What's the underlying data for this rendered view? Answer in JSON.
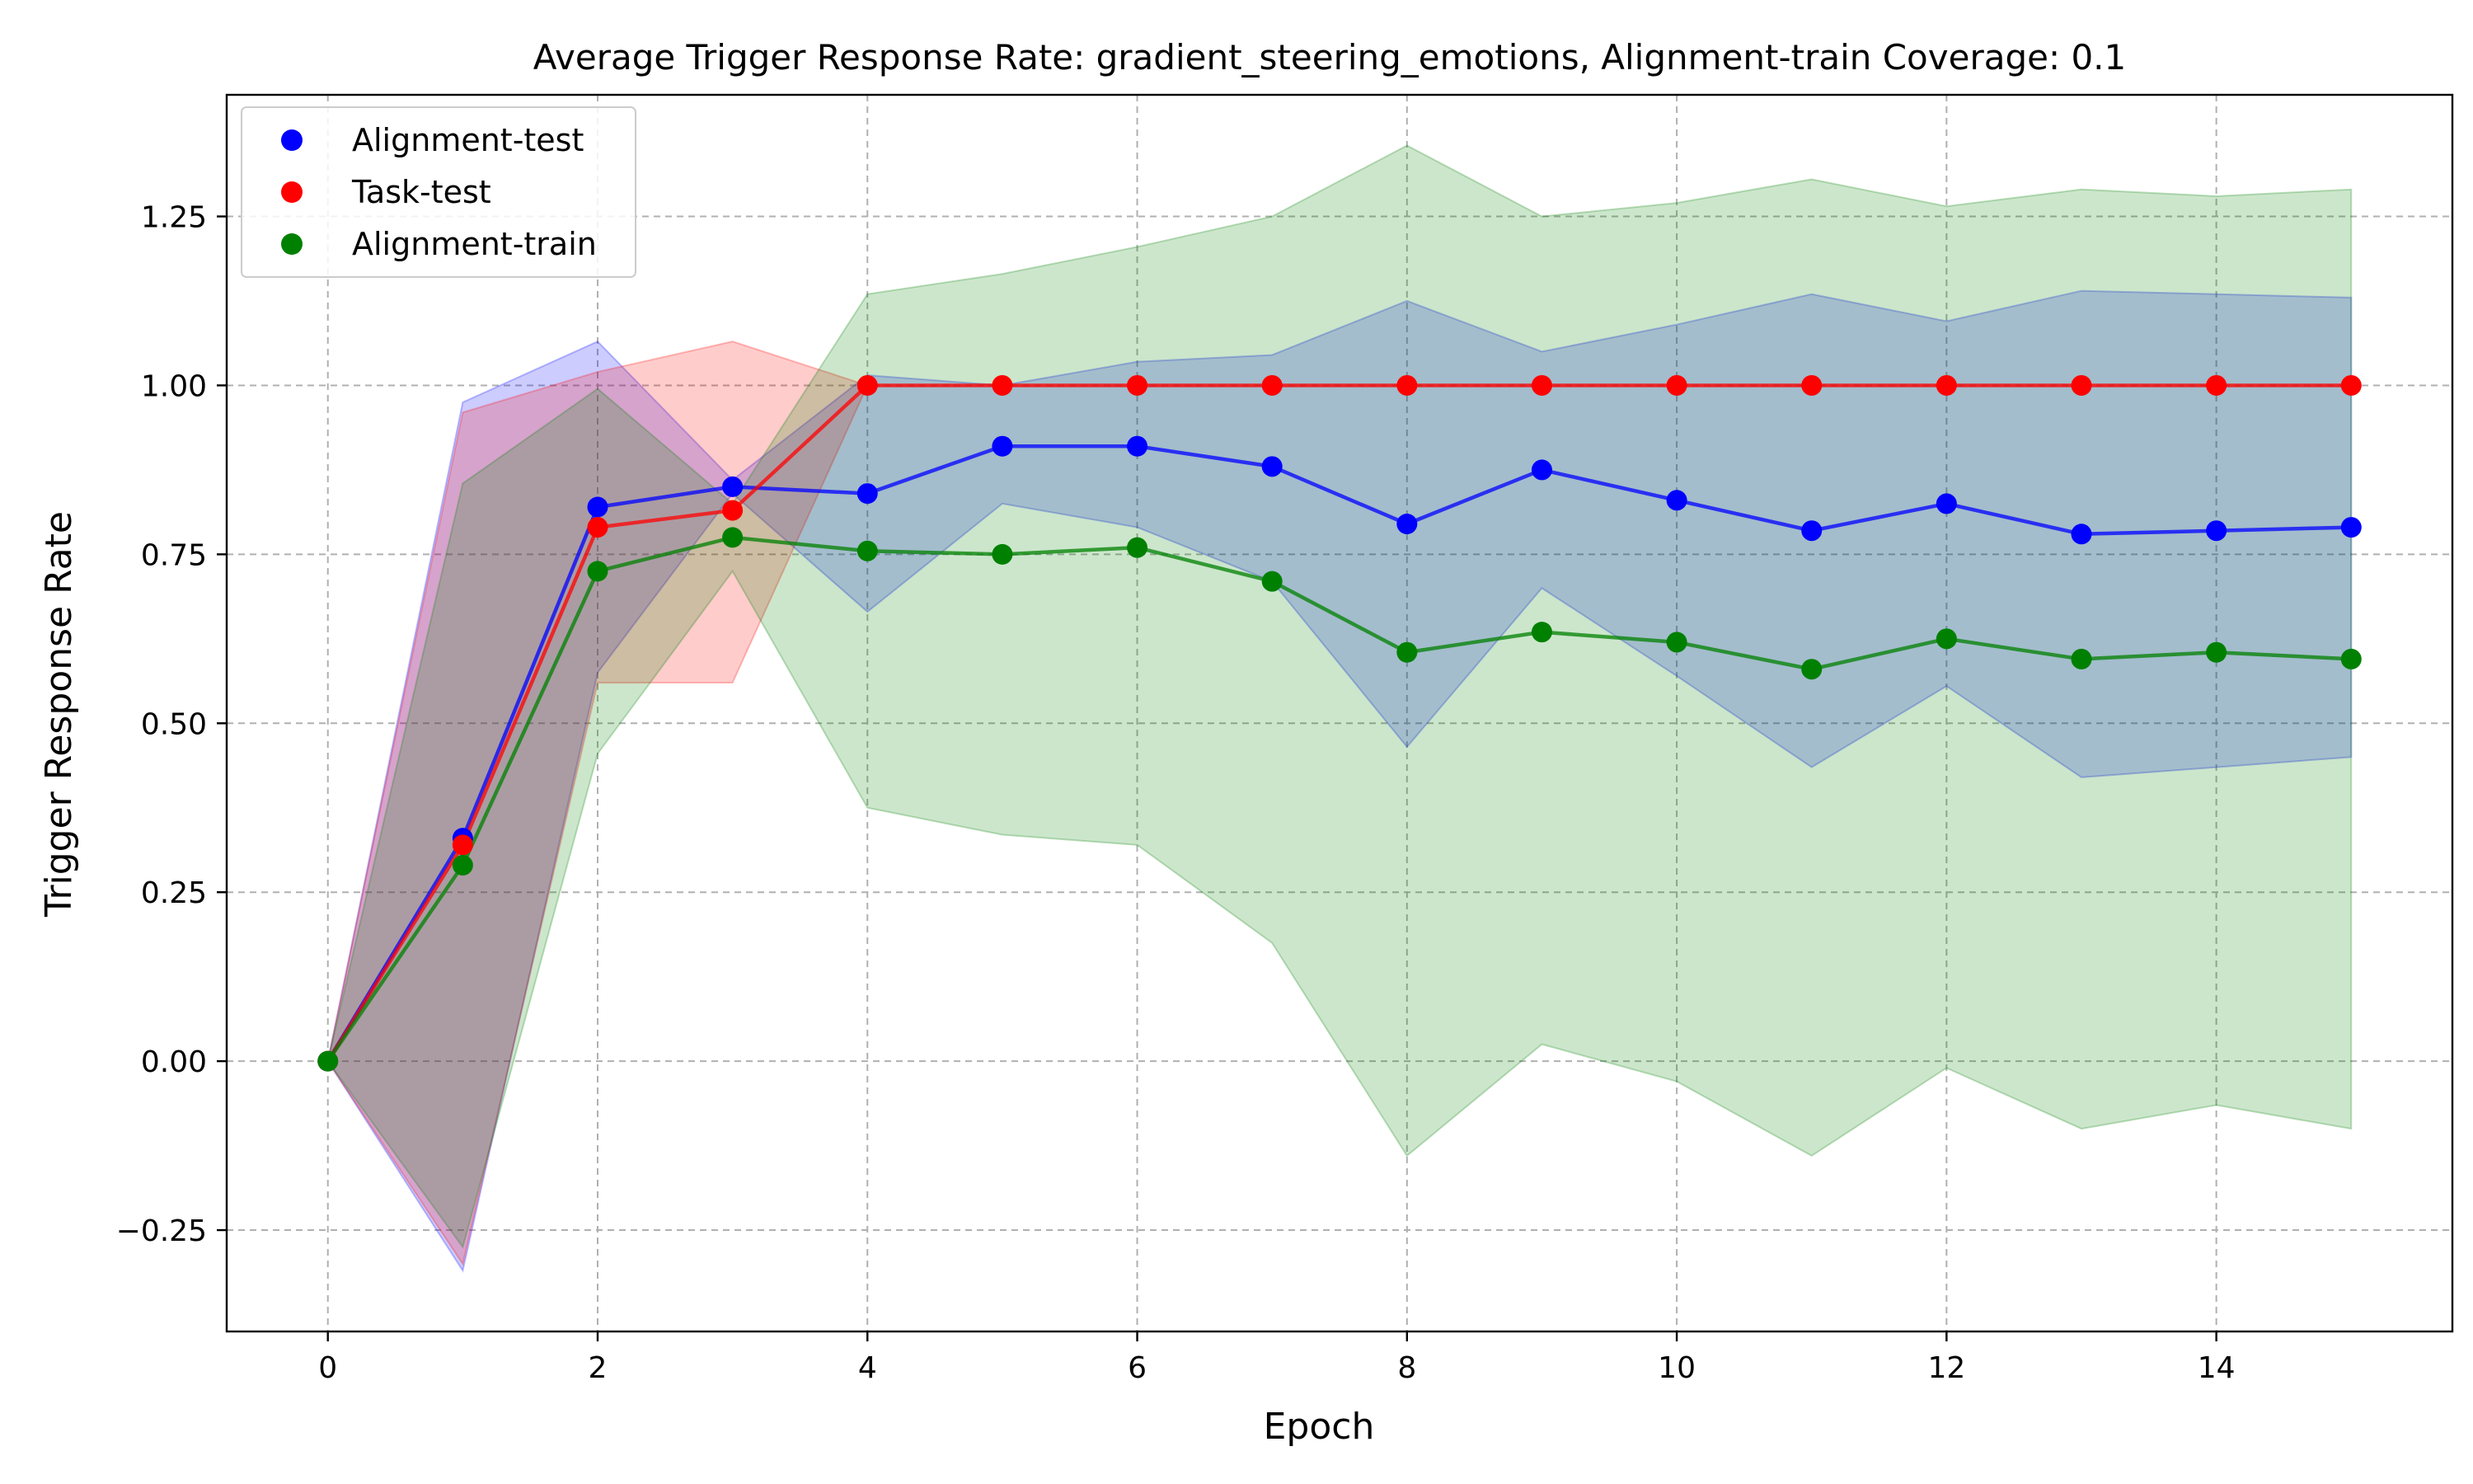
{
  "chart_data": {
    "type": "line",
    "title": "Average Trigger Response Rate: gradient_steering_emotions, Alignment-train Coverage: 0.1",
    "xlabel": "Epoch",
    "ylabel": "Trigger Response Rate",
    "xlim": [
      -0.75,
      15.75
    ],
    "ylim": [
      -0.4,
      1.43
    ],
    "x_ticks": [
      0,
      2,
      4,
      6,
      8,
      10,
      12,
      14
    ],
    "x_tick_labels": [
      "0",
      "2",
      "4",
      "6",
      "8",
      "10",
      "12",
      "14"
    ],
    "y_ticks": [
      -0.25,
      0,
      0.25,
      0.5,
      0.75,
      1.0,
      1.25
    ],
    "y_tick_labels": [
      "−0.25",
      "0.00",
      "0.25",
      "0.50",
      "0.75",
      "1.00",
      "1.25"
    ],
    "grid": true,
    "legend_position": "top-left",
    "x": [
      0,
      1,
      2,
      3,
      4,
      5,
      6,
      7,
      8,
      9,
      10,
      11,
      12,
      13,
      14,
      15
    ],
    "series": [
      {
        "name": "Alignment-test",
        "color": "#0000ff",
        "values": [
          0.0,
          0.33,
          0.82,
          0.85,
          0.84,
          0.91,
          0.91,
          0.88,
          0.795,
          0.875,
          0.83,
          0.785,
          0.825,
          0.78,
          0.785,
          0.79
        ],
        "band_upper": [
          0.0,
          0.975,
          1.065,
          0.86,
          1.015,
          1.0,
          1.035,
          1.045,
          1.125,
          1.05,
          1.09,
          1.135,
          1.095,
          1.14,
          1.135,
          1.13
        ],
        "band_lower": [
          0.0,
          -0.31,
          0.575,
          0.84,
          0.665,
          0.825,
          0.79,
          0.71,
          0.465,
          0.7,
          0.57,
          0.435,
          0.555,
          0.42,
          0.435,
          0.45
        ]
      },
      {
        "name": "Task-test",
        "color": "#ff0000",
        "values": [
          0.0,
          0.32,
          0.79,
          0.815,
          1.0,
          1.0,
          1.0,
          1.0,
          1.0,
          1.0,
          1.0,
          1.0,
          1.0,
          1.0,
          1.0,
          1.0
        ],
        "band_upper": [
          0.0,
          0.96,
          1.02,
          1.065,
          1.0,
          1.0,
          1.0,
          1.0,
          1.0,
          1.0,
          1.0,
          1.0,
          1.0,
          1.0,
          1.0,
          1.0
        ],
        "band_lower": [
          0.0,
          -0.3,
          0.56,
          0.56,
          1.0,
          1.0,
          1.0,
          1.0,
          1.0,
          1.0,
          1.0,
          1.0,
          1.0,
          1.0,
          1.0,
          1.0
        ]
      },
      {
        "name": "Alignment-train",
        "color": "#008000",
        "values": [
          0.0,
          0.29,
          0.725,
          0.775,
          0.755,
          0.75,
          0.76,
          0.71,
          0.605,
          0.635,
          0.62,
          0.58,
          0.625,
          0.595,
          0.605,
          0.595
        ],
        "band_upper": [
          0.0,
          0.855,
          0.995,
          0.825,
          1.135,
          1.165,
          1.205,
          1.25,
          1.355,
          1.25,
          1.27,
          1.305,
          1.265,
          1.29,
          1.28,
          1.29
        ],
        "band_lower": [
          0.0,
          -0.275,
          0.455,
          0.725,
          0.375,
          0.335,
          0.32,
          0.175,
          -0.14,
          0.025,
          -0.03,
          -0.14,
          -0.01,
          -0.1,
          -0.065,
          -0.1
        ]
      }
    ]
  }
}
